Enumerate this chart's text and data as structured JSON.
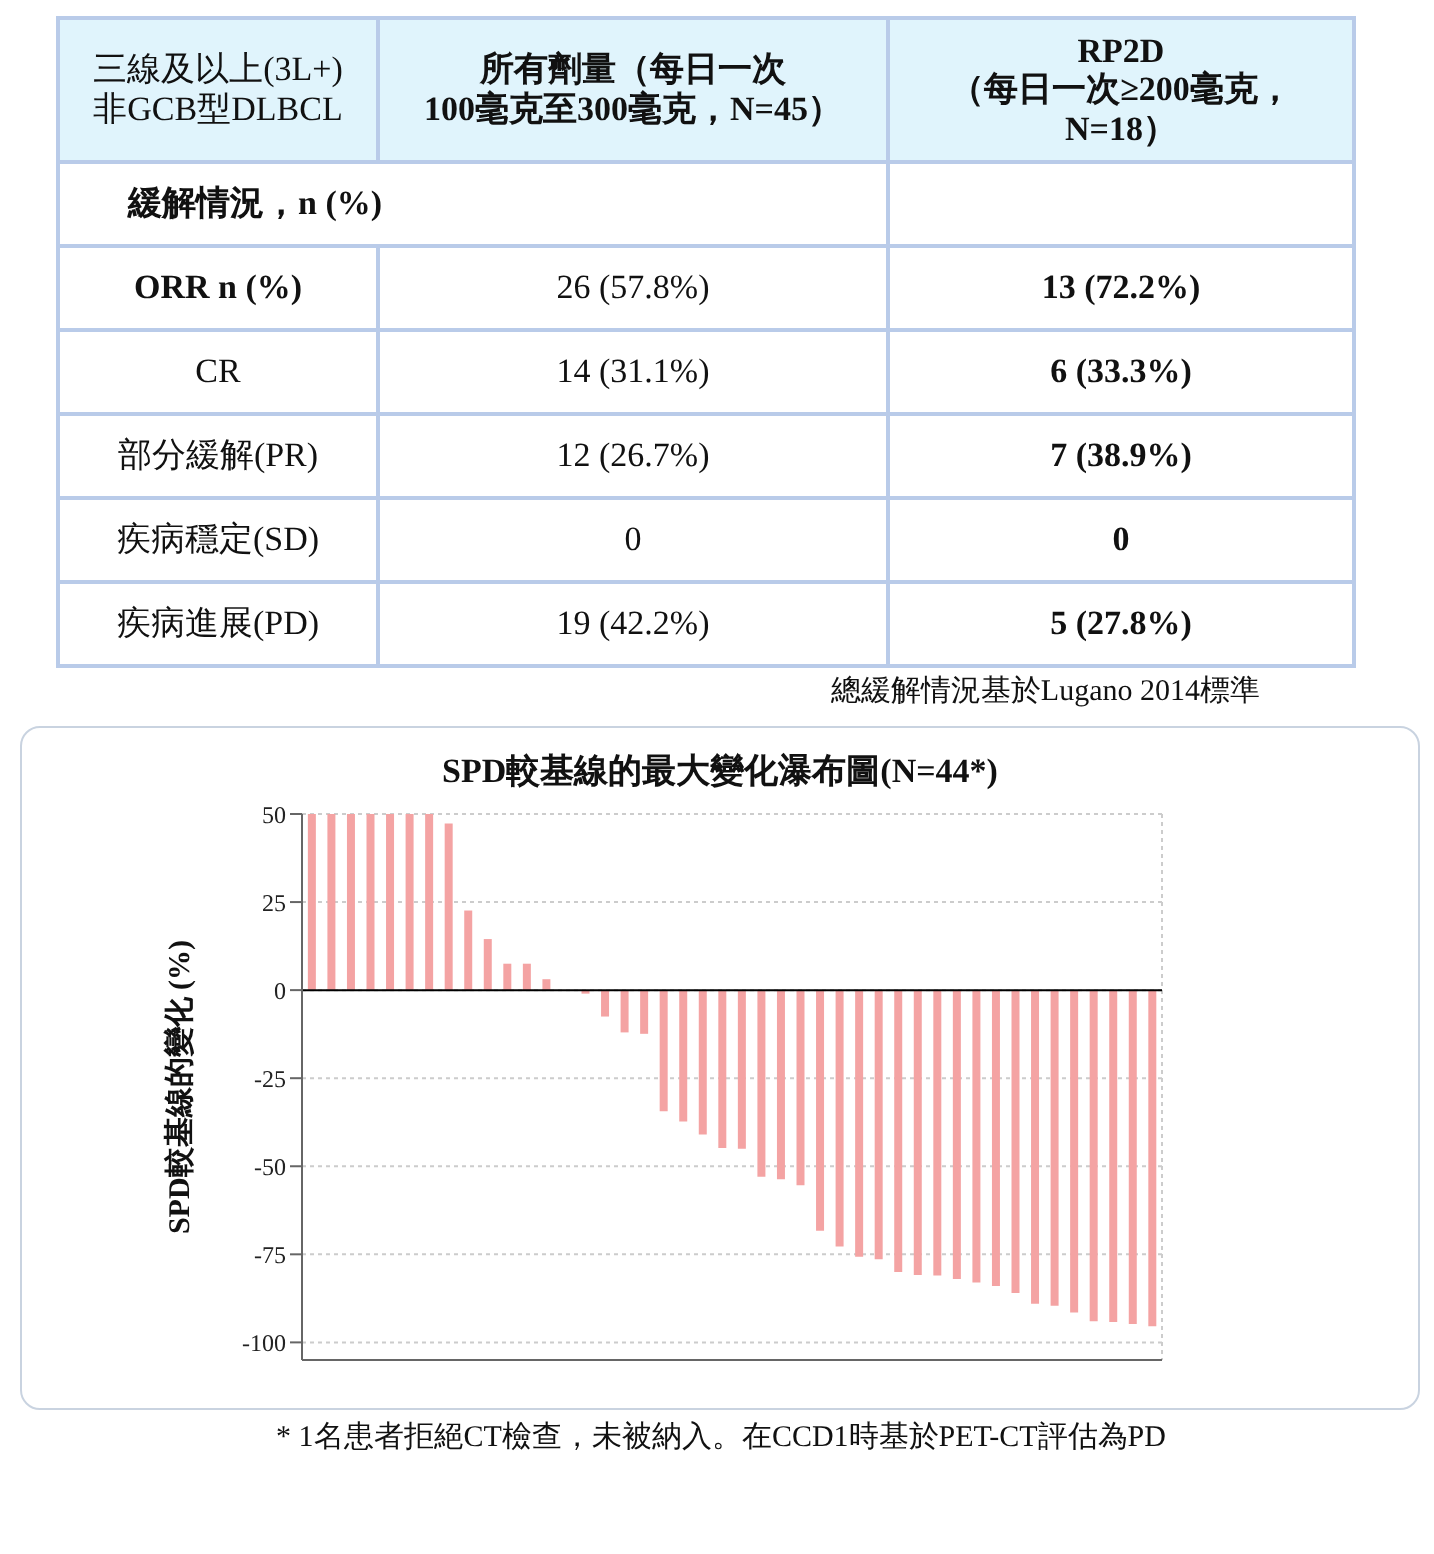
{
  "chart_data": [
    {
      "type": "other",
      "annotations": [
        "三線及以上(3L+)\n非GCB型DLBCL",
        "所有劑量（每日一次\n100毫克至300毫克，N=45）",
        "RP2D\n（每日一次≥200毫克，\nN=18）",
        "緩解情況，n (%)",
        "ORR n (%)",
        "26 (57.8%)",
        "13 (72.2%)",
        "CR",
        "14 (31.1%)",
        "6 (33.3%)",
        "部分緩解(PR)",
        "12 (26.7%)",
        "7 (38.9%)",
        "疾病穩定(SD)",
        "0",
        "0",
        "疾病進展(PD)",
        "19 (42.2%)",
        "5 (27.8%)",
        "總緩解情況基於Lugano 2014標準"
      ]
    },
    {
      "type": "bar",
      "title": "SPD較基線的最大變化瀑布圖(N=44*)",
      "ylabel": "SPD較基線的變化 (%)",
      "categories": [
        null,
        null,
        null,
        null,
        null,
        null,
        null,
        null,
        null,
        null,
        null,
        null,
        null,
        null,
        null,
        null,
        null,
        null,
        null,
        null,
        null,
        null,
        null,
        null,
        null,
        null,
        null,
        null,
        null,
        null,
        null,
        null,
        null,
        null,
        null,
        null,
        null,
        null,
        null,
        null,
        null,
        null,
        null,
        null
      ],
      "values": [
        50,
        50,
        50,
        50,
        50,
        50,
        50,
        47.3,
        22.6,
        14.5,
        7.5,
        7.5,
        3.1,
        0,
        -1,
        -7.5,
        -12,
        -12.4,
        -34.4,
        -37.3,
        -41,
        -44.8,
        -45,
        -53,
        -53.7,
        -55.4,
        -68.3,
        -72.8,
        -75.7,
        -76.4,
        -80,
        -80.9,
        -81,
        -82,
        -83,
        -84,
        -86,
        -89,
        -89.6,
        -91.5,
        -94,
        -94.2,
        -94.8,
        -95.4
      ],
      "color": "#f4a3a3",
      "ylim": [
        -105,
        50
      ],
      "yticks": [
        50,
        25,
        0,
        -25,
        -50,
        -75,
        -100
      ],
      "grid": true,
      "tick_labels": "y",
      "ref_lines": [
        {
          "axis": "y",
          "value": 0,
          "color": "#000000"
        }
      ],
      "annotations": [
        "* 1名患者拒絕CT檢查，未被納入。在CCD1時基於PET-CT評估為PD"
      ]
    }
  ]
}
